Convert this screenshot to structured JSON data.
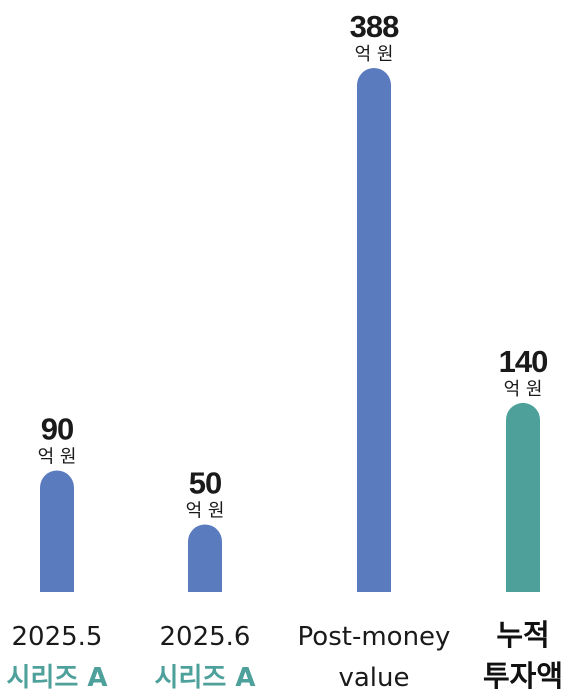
{
  "chart_data": {
    "type": "bar",
    "categories": [
      {
        "lines": [
          "2025.5",
          "시리즈 A"
        ],
        "style": [
          "normal",
          "accent"
        ]
      },
      {
        "lines": [
          "2025.6",
          "시리즈 A"
        ],
        "style": [
          "normal",
          "accent"
        ]
      },
      {
        "lines": [
          "Post-money",
          "value"
        ],
        "style": [
          "normal",
          "normal"
        ]
      },
      {
        "lines": [
          "누적",
          "투자액"
        ],
        "style": [
          "bold",
          "bold"
        ]
      }
    ],
    "values": [
      90,
      50,
      388,
      140
    ],
    "value_labels": [
      "90",
      "50",
      "388",
      "140"
    ],
    "unit": "억 원",
    "bar_colors": [
      "#5b7bbf",
      "#5b7bbf",
      "#5b7bbf",
      "#4ea19b"
    ],
    "colors": {
      "accent_text": "#4ea19b",
      "text": "#1a1a1a"
    },
    "ylim": [
      0,
      388
    ],
    "grid": false,
    "legend": "none"
  }
}
